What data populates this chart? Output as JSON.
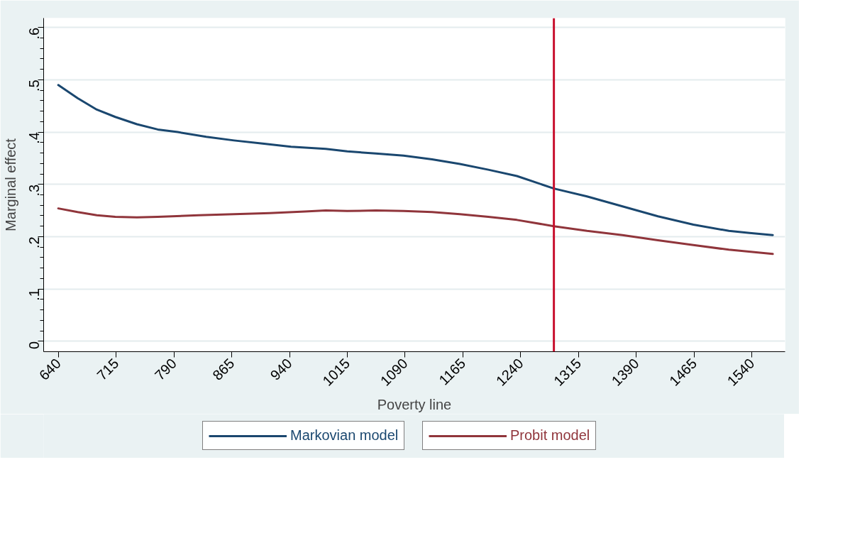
{
  "chart_data": {
    "type": "line",
    "xlabel": "Poverty line",
    "ylabel": "Marginal effect",
    "xlim": [
      621,
      1583
    ],
    "ylim": [
      -0.02,
      0.618
    ],
    "xticks": [
      640,
      715,
      790,
      865,
      940,
      1015,
      1090,
      1165,
      1240,
      1315,
      1390,
      1465,
      1540
    ],
    "yticks": [
      {
        "value": 0,
        "label": "0"
      },
      {
        "value": 0.02,
        "label": null
      },
      {
        "value": 0.04,
        "label": null
      },
      {
        "value": 0.06,
        "label": null
      },
      {
        "value": 0.08,
        "label": null
      },
      {
        "value": 0.1,
        "label": ".1"
      },
      {
        "value": 0.12,
        "label": null
      },
      {
        "value": 0.14,
        "label": null
      },
      {
        "value": 0.16,
        "label": null
      },
      {
        "value": 0.18,
        "label": null
      },
      {
        "value": 0.2,
        "label": ".2"
      },
      {
        "value": 0.22,
        "label": null
      },
      {
        "value": 0.24,
        "label": null
      },
      {
        "value": 0.26,
        "label": null
      },
      {
        "value": 0.28,
        "label": null
      },
      {
        "value": 0.3,
        "label": ".3"
      },
      {
        "value": 0.32,
        "label": null
      },
      {
        "value": 0.34,
        "label": null
      },
      {
        "value": 0.36,
        "label": null
      },
      {
        "value": 0.38,
        "label": null
      },
      {
        "value": 0.4,
        "label": ".4"
      },
      {
        "value": 0.42,
        "label": null
      },
      {
        "value": 0.44,
        "label": null
      },
      {
        "value": 0.46,
        "label": null
      },
      {
        "value": 0.48,
        "label": null
      },
      {
        "value": 0.5,
        "label": ".5"
      },
      {
        "value": 0.52,
        "label": null
      },
      {
        "value": 0.54,
        "label": null
      },
      {
        "value": 0.56,
        "label": null
      },
      {
        "value": 0.58,
        "label": null
      },
      {
        "value": 0.6,
        "label": ".6"
      }
    ],
    "grid": "y",
    "legend": "bottom",
    "line_style": "solid",
    "ref_lines": [
      {
        "axis": "x",
        "value": 1283,
        "color": "#c8102e"
      }
    ],
    "series": [
      {
        "name": "Markovian model",
        "color": "#1a476f",
        "x": [
          640,
          665,
          690,
          714,
          742,
          769,
          795,
          832,
          868,
          905,
          942,
          987,
          1015,
          1052,
          1088,
          1125,
          1161,
          1198,
          1235,
          1283,
          1326,
          1372,
          1418,
          1464,
          1510,
          1537,
          1567
        ],
        "values": [
          0.49,
          0.465,
          0.443,
          0.429,
          0.415,
          0.405,
          0.4,
          0.391,
          0.384,
          0.378,
          0.372,
          0.368,
          0.363,
          0.359,
          0.355,
          0.348,
          0.339,
          0.328,
          0.316,
          0.292,
          0.277,
          0.258,
          0.239,
          0.223,
          0.211,
          0.207,
          0.203
        ]
      },
      {
        "name": "Probit model",
        "color": "#90353b",
        "x": [
          640,
          665,
          690,
          714,
          742,
          769,
          822,
          868,
          914,
          960,
          987,
          1015,
          1052,
          1088,
          1125,
          1161,
          1198,
          1235,
          1283,
          1326,
          1372,
          1418,
          1464,
          1510,
          1567
        ],
        "values": [
          0.254,
          0.247,
          0.241,
          0.238,
          0.237,
          0.238,
          0.241,
          0.243,
          0.245,
          0.248,
          0.25,
          0.249,
          0.25,
          0.249,
          0.247,
          0.243,
          0.238,
          0.232,
          0.22,
          0.211,
          0.203,
          0.193,
          0.184,
          0.175,
          0.167
        ]
      }
    ]
  }
}
